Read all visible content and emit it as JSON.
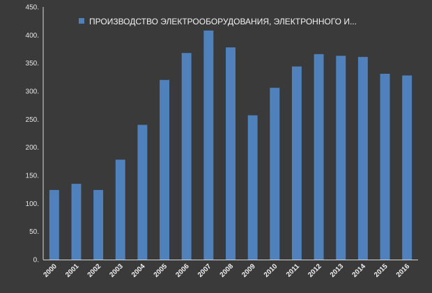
{
  "chart_data": {
    "type": "bar",
    "categories": [
      "2000",
      "2001",
      "2002",
      "2003",
      "2004",
      "2005",
      "2006",
      "2007",
      "2008",
      "2009",
      "2010",
      "2011",
      "2012",
      "2013",
      "2014",
      "2015",
      "2016"
    ],
    "series": [
      {
        "name": "ПРОИЗВОДСТВО ЭЛЕКТРООБОРУДОВАНИЯ,  ЭЛЕКТРОННОГО И...",
        "values": [
          124,
          135,
          124,
          178,
          240,
          320,
          368,
          408,
          378,
          257,
          306,
          344,
          366,
          363,
          361,
          331,
          328
        ],
        "color": "#4f81bd"
      }
    ],
    "ylim": [
      0,
      450
    ],
    "yticks": [
      "0.",
      "50.",
      "100.",
      "150.",
      "200.",
      "250.",
      "300.",
      "350.",
      "400.",
      "450."
    ],
    "grid": false,
    "legend_position": "top",
    "colors": {
      "background": "#3a3a3a",
      "axis": "#d9d9d9",
      "text": "#e6e6e6",
      "bar": "#4f81bd"
    }
  }
}
